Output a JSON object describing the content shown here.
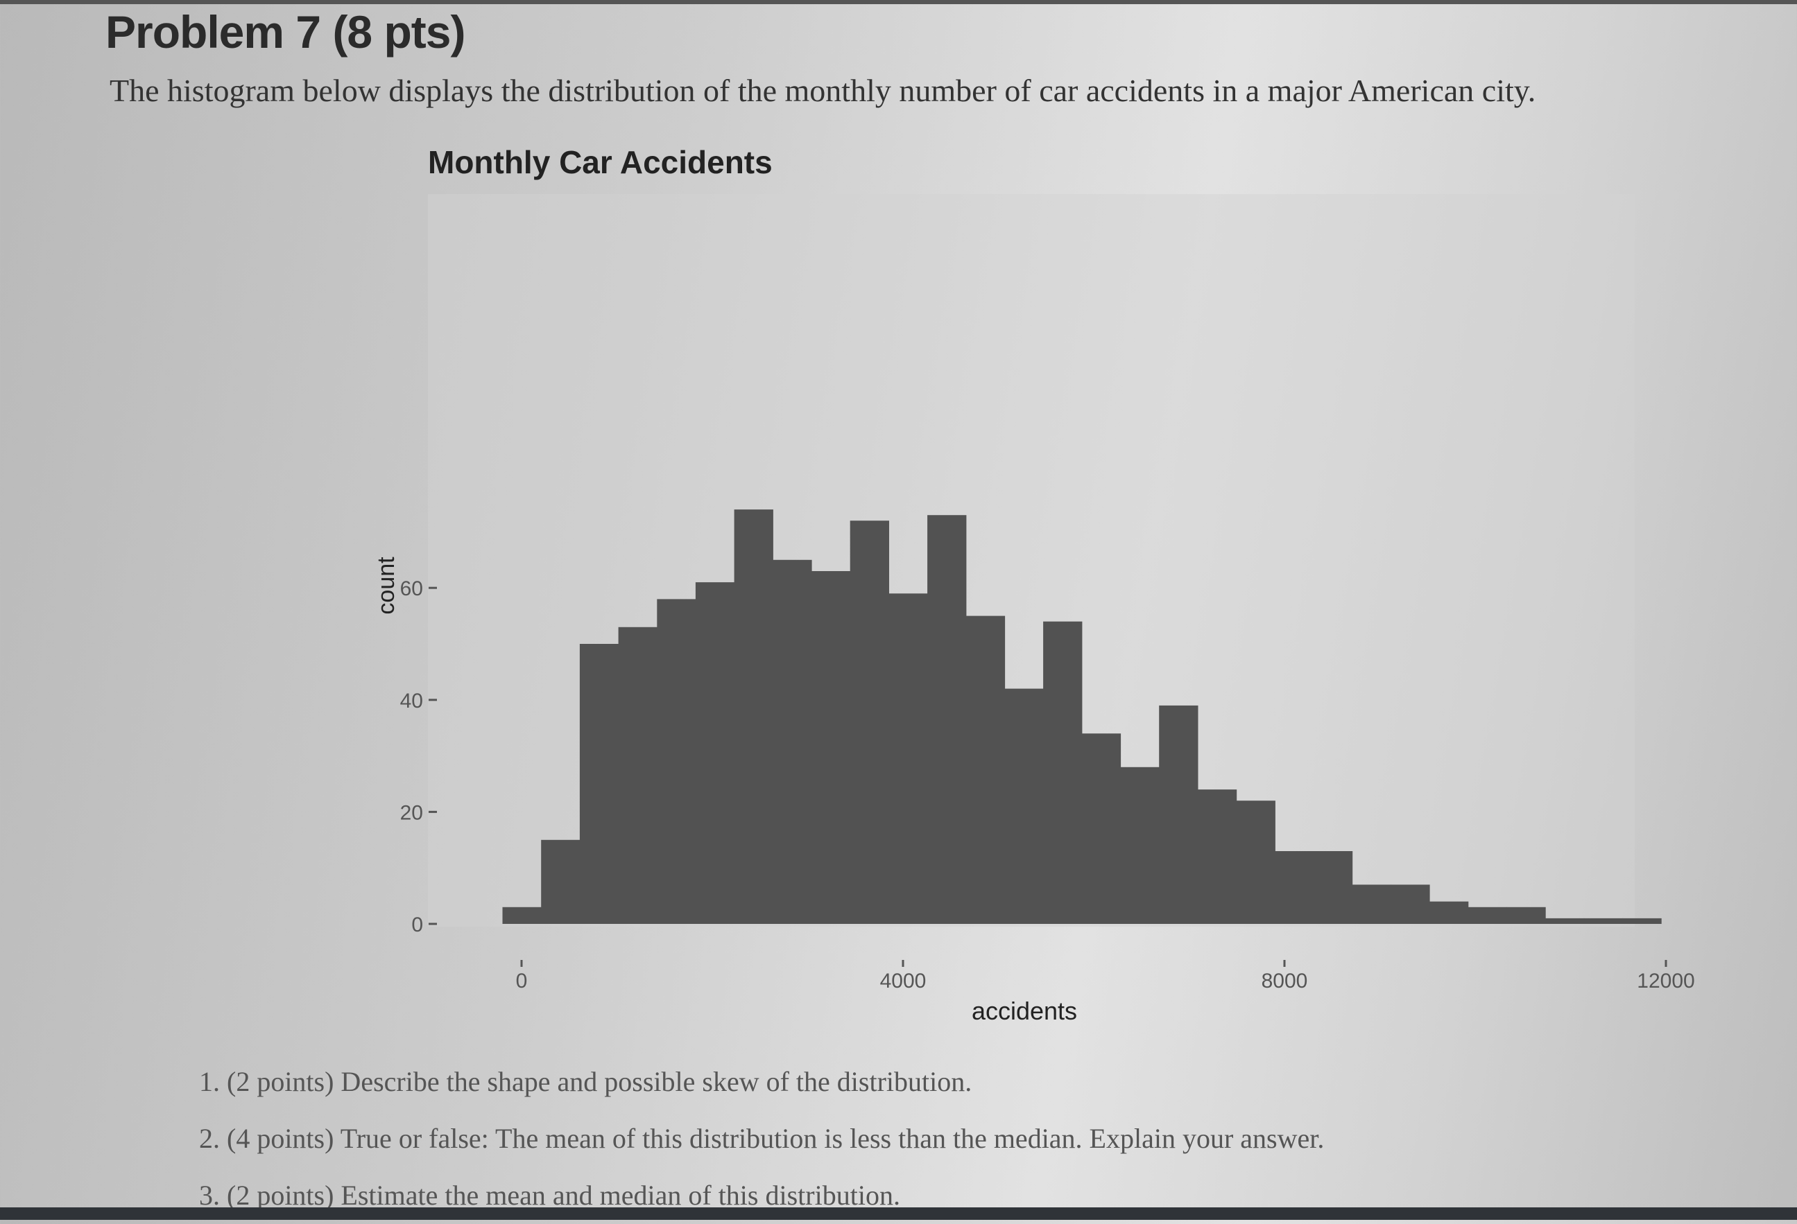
{
  "problem": {
    "heading": "Problem 7 (8 pts)",
    "intro": "The histogram below displays the distribution of the monthly number of car accidents in a major American city."
  },
  "questions": [
    {
      "number": "1.",
      "text": "(2 points) Describe the shape and possible skew of the distribution."
    },
    {
      "number": "2.",
      "text": "(4 points) True or false: The mean of this distribution is less than the median. Explain your answer."
    },
    {
      "number": "3.",
      "text": "(2 points) Estimate the mean and median of this distribution."
    }
  ],
  "colors": {
    "bars": "#525252",
    "panel": "#d2d2d2",
    "text": "#333333"
  },
  "chart_data": {
    "type": "bar",
    "title": "Monthly Car Accidents",
    "xlabel": "accidents",
    "ylabel": "count",
    "xlim": [
      -200,
      12000
    ],
    "ylim": [
      0,
      75
    ],
    "x_ticks": [
      0,
      4000,
      8000,
      12000
    ],
    "x_tick_labels": [
      "0",
      "4000",
      "8000",
      "12000"
    ],
    "y_ticks": [
      0,
      20,
      40,
      60
    ],
    "y_tick_labels": [
      "0",
      "20",
      "40",
      "60"
    ],
    "bin_width": 405,
    "bin_starts": [
      -200,
      205,
      610,
      1015,
      1420,
      1825,
      2230,
      2635,
      3040,
      3445,
      3850,
      4255,
      4660,
      5065,
      5470,
      5875,
      6280,
      6685,
      7090,
      7495,
      7900,
      8305,
      8710,
      9115,
      9520,
      9925,
      10330,
      10735,
      11140,
      11545
    ],
    "counts": [
      3,
      15,
      50,
      53,
      58,
      61,
      74,
      65,
      63,
      72,
      59,
      73,
      55,
      42,
      54,
      34,
      28,
      39,
      24,
      22,
      13,
      13,
      7,
      7,
      4,
      3,
      3,
      1,
      1,
      1
    ],
    "grid": false,
    "legend": "none"
  }
}
